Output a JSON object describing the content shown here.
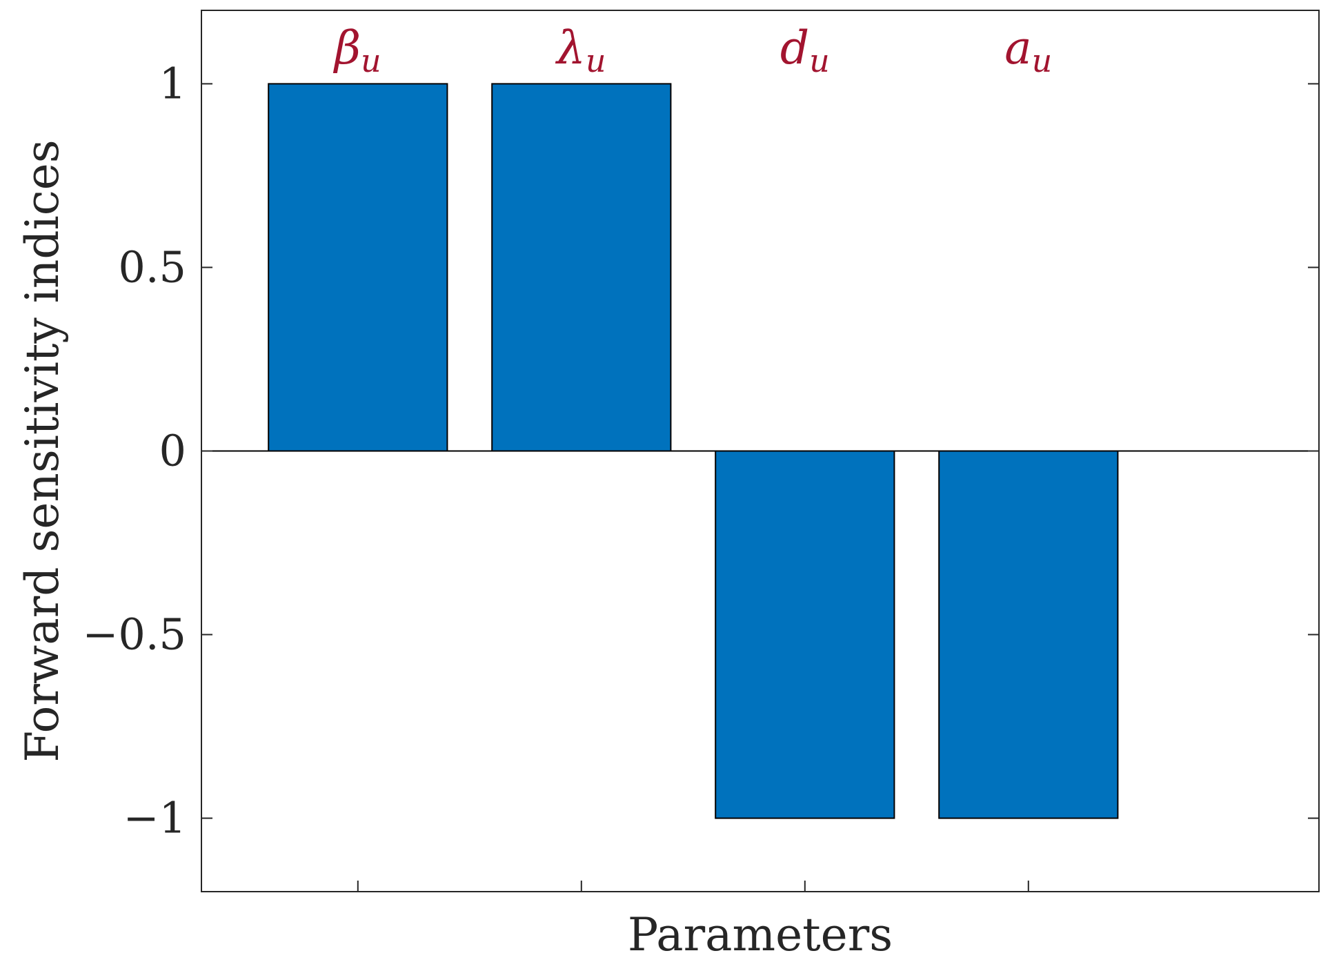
{
  "chart_data": {
    "type": "bar",
    "title": "",
    "xlabel": "Parameters",
    "ylabel": "Forward sensitivity indices",
    "categories": [
      {
        "symbol": "β",
        "sub": "u"
      },
      {
        "symbol": "λ",
        "sub": "u"
      },
      {
        "symbol": "d",
        "sub": "u"
      },
      {
        "symbol": "a",
        "sub": "u"
      }
    ],
    "values": [
      1,
      1,
      -1,
      -1
    ],
    "ylim": [
      -1.2,
      1.2
    ],
    "yticks": [
      -1,
      -0.5,
      0,
      0.5,
      1
    ],
    "ytick_labels": [
      "−1",
      "−0.5",
      "0",
      "0.5",
      "1"
    ],
    "xlim": [
      0.5,
      5.5
    ],
    "x_positions": [
      1.2,
      2.2,
      3.2,
      4.2
    ],
    "grid": false,
    "legend": "none"
  },
  "colors": {
    "bar_fill": "#0072bd",
    "bar_edge": "#000000",
    "label_color": "#a2142f",
    "axis_color": "#262626"
  }
}
